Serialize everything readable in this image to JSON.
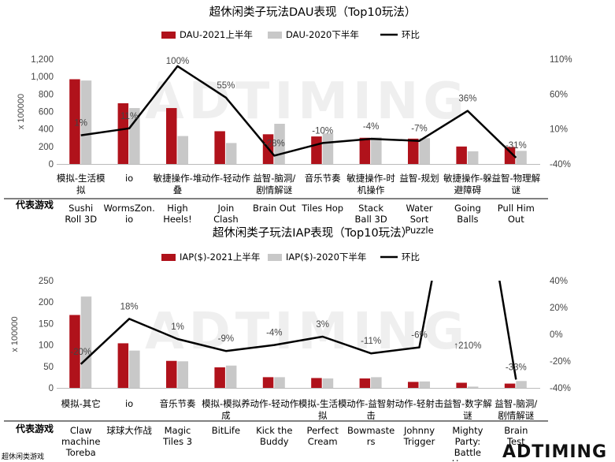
{
  "footer_text": "超休闲类游戏",
  "logo_text": "ADTIMING",
  "watermark_text": "ADTIMING",
  "colors": {
    "bar_current": "#b0121b",
    "bar_previous": "#c8c8c8",
    "line": "#000000",
    "watermark": "#e8e8e8"
  },
  "chart_data": [
    {
      "type": "bar",
      "title": "超休闲类子玩法DAU表现（Top10玩法）",
      "ylabel": "x 100000",
      "ylim": [
        0,
        1200
      ],
      "yticks": [
        "0",
        "200",
        "400",
        "600",
        "800",
        "1,000",
        "1,200"
      ],
      "y2lim": [
        -40,
        110
      ],
      "y2ticks": [
        "-40%",
        "10%",
        "60%",
        "110%"
      ],
      "games_header": "代表游戏",
      "categories": [
        "模拟-生活模拟",
        "io",
        "敏捷操作-堆叠",
        "动作-轻动作",
        "益智-脑洞/剧情解谜",
        "音乐节奏",
        "敏捷操作-时机操作",
        "益智-规划",
        "敏捷操作-躲避障碍",
        "益智-物理解谜"
      ],
      "games": [
        "Sushi Roll 3D",
        "WormsZon.io",
        "High Heels!",
        "Join Clash",
        "Brain Out",
        "Tiles Hop",
        "Stack Ball 3D",
        "Water Sort Puzzle",
        "Going Balls",
        "Pull Him Out"
      ],
      "series": [
        {
          "name": "DAU-2021上半年",
          "values": [
            970,
            695,
            640,
            375,
            340,
            315,
            300,
            290,
            200,
            195
          ]
        },
        {
          "name": "DAU-2020下半年",
          "values": [
            955,
            640,
            320,
            240,
            460,
            350,
            305,
            295,
            145,
            150
          ]
        }
      ],
      "line": {
        "name": "环比",
        "values": [
          1,
          11,
          100,
          55,
          -28,
          -10,
          -4,
          -7,
          36,
          -31
        ]
      },
      "line_labels": [
        "1%",
        "11%",
        "100%",
        "55%",
        "-28%",
        "-10%",
        "-4%",
        "-7%",
        "36%",
        "-31%"
      ],
      "legend": "top"
    },
    {
      "type": "bar",
      "title": "超休闲类子玩法IAP表现（Top10玩法）",
      "ylabel": "x 100000",
      "ylim": [
        0,
        250
      ],
      "yticks": [
        "0",
        "50",
        "100",
        "150",
        "200",
        "250"
      ],
      "y2lim": [
        -40,
        50
      ],
      "y2ticks": [
        "-40%",
        "-20%",
        "0%",
        "20%",
        "40%"
      ],
      "games_header": "代表游戏",
      "categories": [
        "模拟-其它",
        "io",
        "音乐节奏",
        "模拟-模拟养成",
        "动作-轻动作",
        "模拟-生活模拟",
        "动作-益智射击",
        "动作-轻射击",
        "益智-数字解谜",
        "益智-脑洞/剧情解谜"
      ],
      "games": [
        "Claw machine Toreba",
        "球球大作战",
        "Magic Tiles 3",
        "BitLife",
        "Kick the Buddy",
        "Perfect Cream",
        "Bowmasters",
        "Johnny Trigger",
        "Mighty Party: Battle Heroes",
        "Brain Test"
      ],
      "series": [
        {
          "name": "IAP($)-2021上半年",
          "values": [
            170,
            104,
            63,
            48,
            25,
            23,
            22,
            14,
            12,
            10
          ]
        },
        {
          "name": "IAP($)-2020下半年",
          "values": [
            213,
            87,
            62,
            52,
            25,
            22,
            25,
            15,
            3,
            16
          ]
        }
      ],
      "line": {
        "name": "环比",
        "values": [
          -20,
          18,
          1,
          -9,
          -4,
          3,
          -11,
          -6,
          210,
          -33
        ]
      },
      "line_labels": [
        "-20%",
        "18%",
        "1%",
        "-9%",
        "-4%",
        "3%",
        "-11%",
        "-6%",
        "↑210%",
        "-33%"
      ],
      "legend": "top"
    }
  ]
}
